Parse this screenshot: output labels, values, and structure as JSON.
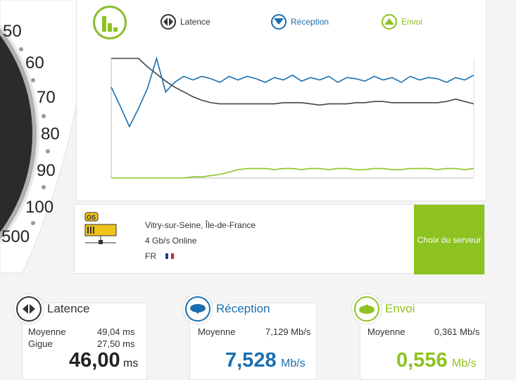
{
  "gauge": {
    "labels": [
      "50",
      "60",
      "70",
      "80",
      "90",
      "100",
      "500"
    ]
  },
  "legend": {
    "latency": "Latence",
    "download": "Réception",
    "upload": "Envoi"
  },
  "colors": {
    "green": "#8dc220",
    "blue": "#1a6fb0",
    "dark": "#444444"
  },
  "chart_data": {
    "type": "line",
    "series": [
      {
        "name": "Latence",
        "color": "#444444",
        "values": [
          100,
          100,
          100,
          100,
          93,
          87,
          81,
          76,
          72,
          68,
          65,
          63,
          62,
          62,
          62,
          62,
          62,
          62,
          62,
          63,
          63,
          63,
          62,
          61,
          62,
          62,
          62,
          63,
          63,
          64,
          64,
          63,
          63,
          63,
          63,
          63,
          63,
          64,
          66,
          64,
          62
        ]
      },
      {
        "name": "Réception",
        "color": "#1a6fb0",
        "values": [
          76,
          60,
          43,
          58,
          75,
          100,
          72,
          80,
          85,
          82,
          85,
          83,
          80,
          85,
          82,
          85,
          83,
          80,
          84,
          82,
          86,
          81,
          84,
          82,
          85,
          80,
          84,
          83,
          81,
          85,
          82,
          84,
          80,
          85,
          82,
          84,
          83,
          80,
          84,
          82,
          86
        ]
      },
      {
        "name": "Envoi",
        "color": "#8dc220",
        "values": [
          0,
          0,
          0,
          0,
          0,
          0,
          0,
          0,
          0,
          1,
          1,
          2,
          3,
          5,
          7,
          8,
          8,
          8,
          7,
          8,
          8,
          7,
          8,
          8,
          7,
          8,
          8,
          7,
          7,
          8,
          8,
          7,
          7,
          8,
          8,
          8,
          7,
          8,
          8,
          7,
          8
        ]
      }
    ]
  },
  "server": {
    "badge": "OS",
    "location": "Vitry-sur-Seine, Île-de-France",
    "provider": "4 Gb/s Online",
    "country": "FR",
    "choose_button": "Choix du serveur"
  },
  "cards": {
    "latency": {
      "title": "Latence",
      "avg_label": "Moyenne",
      "avg_value": "49,04 ms",
      "jitter_label": "Gigue",
      "jitter_value": "27,50 ms",
      "value": "46,00",
      "unit": "ms"
    },
    "download": {
      "title": "Réception",
      "avg_label": "Moyenne",
      "avg_value": "7,129 Mb/s",
      "value": "7,528",
      "unit": "Mb/s"
    },
    "upload": {
      "title": "Envoi",
      "avg_label": "Moyenne",
      "avg_value": "0,361 Mb/s",
      "value": "0,556",
      "unit": "Mb/s"
    }
  }
}
